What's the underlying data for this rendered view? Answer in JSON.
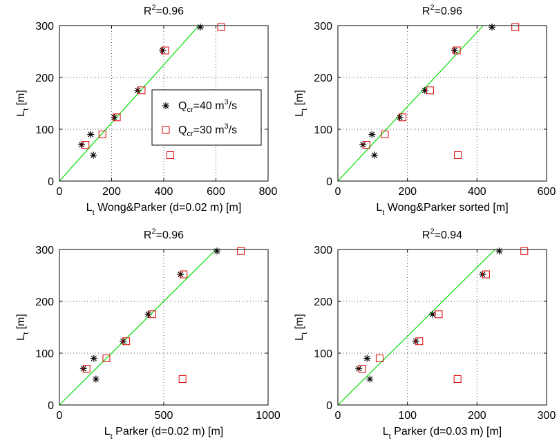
{
  "colors": {
    "series_a": "#000000",
    "series_b": "#dd0000",
    "fit_line": "#00dd00",
    "grid": "#555555"
  },
  "legend": {
    "entries": [
      {
        "marker": "star",
        "color": "#000000",
        "prefix": "Q",
        "sub": "cr",
        "text": "=40 m",
        "sup": "3",
        "suffix": "/s"
      },
      {
        "marker": "square",
        "color": "#dd0000",
        "prefix": "Q",
        "sub": "cr",
        "text": "=30 m",
        "sup": "3",
        "suffix": "/s"
      }
    ]
  },
  "chart_data": [
    {
      "type": "scatter",
      "title": {
        "prefix": "R",
        "sup": "2",
        "rest": "=0.96"
      },
      "xlabel": {
        "prefix": "L",
        "sub": "t",
        "rest": " Wong&Parker (d=0.02 m) [m]"
      },
      "ylabel": {
        "prefix": "L",
        "sub": "t",
        "rest": " [m]"
      },
      "xlim": [
        0,
        800
      ],
      "ylim": [
        0,
        300
      ],
      "xticks": [
        0,
        200,
        400,
        600,
        800
      ],
      "yticks": [
        0,
        100,
        200,
        300
      ],
      "grid": true,
      "legend_position": "center-right",
      "fit_line": {
        "x": [
          0,
          535
        ],
        "y": [
          0,
          300
        ]
      },
      "series": [
        {
          "marker": "star",
          "points": [
            [
              540,
              297
            ],
            [
              395,
              252
            ],
            [
              300,
              175
            ],
            [
              210,
              123
            ],
            [
              120,
              90
            ],
            [
              85,
              70
            ],
            [
              130,
              50
            ]
          ]
        },
        {
          "marker": "square",
          "points": [
            [
              620,
              297
            ],
            [
              405,
              252
            ],
            [
              315,
              175
            ],
            [
              220,
              123
            ],
            [
              165,
              90
            ],
            [
              100,
              70
            ],
            [
              425,
              50
            ]
          ]
        }
      ]
    },
    {
      "type": "scatter",
      "title": {
        "prefix": "R",
        "sup": "2",
        "rest": "=0.96"
      },
      "xlabel": {
        "prefix": "L",
        "sub": "t",
        "rest": " Wong&Parker sorted [m]"
      },
      "ylabel": {
        "prefix": "L",
        "sub": "t",
        "rest": " [m]"
      },
      "xlim": [
        0,
        600
      ],
      "ylim": [
        0,
        300
      ],
      "xticks": [
        0,
        200,
        400,
        600
      ],
      "yticks": [
        0,
        100,
        200,
        300
      ],
      "grid": true,
      "fit_line": {
        "x": [
          0,
          418
        ],
        "y": [
          0,
          300
        ]
      },
      "series": [
        {
          "marker": "star",
          "points": [
            [
              443,
              297
            ],
            [
              335,
              252
            ],
            [
              250,
              175
            ],
            [
              178,
              123
            ],
            [
              98,
              90
            ],
            [
              72,
              70
            ],
            [
              105,
              50
            ]
          ]
        },
        {
          "marker": "square",
          "points": [
            [
              510,
              297
            ],
            [
              342,
              252
            ],
            [
              265,
              175
            ],
            [
              186,
              123
            ],
            [
              135,
              90
            ],
            [
              82,
              70
            ],
            [
              345,
              50
            ]
          ]
        }
      ]
    },
    {
      "type": "scatter",
      "title": {
        "prefix": "R",
        "sup": "2",
        "rest": "=0.96"
      },
      "xlabel": {
        "prefix": "L",
        "sub": "t",
        "rest": " Parker (d=0.02 m) [m]"
      },
      "ylabel": {
        "prefix": "L",
        "sub": "t",
        "rest": " [m]"
      },
      "xlim": [
        0,
        1000
      ],
      "ylim": [
        0,
        300
      ],
      "xticks": [
        0,
        500,
        1000
      ],
      "yticks": [
        0,
        100,
        200,
        300
      ],
      "grid": true,
      "fit_line": {
        "x": [
          0,
          750
        ],
        "y": [
          0,
          300
        ]
      },
      "series": [
        {
          "marker": "star",
          "points": [
            [
              755,
              297
            ],
            [
              580,
              252
            ],
            [
              425,
              175
            ],
            [
              305,
              123
            ],
            [
              165,
              90
            ],
            [
              115,
              70
            ],
            [
              175,
              50
            ]
          ]
        },
        {
          "marker": "square",
          "points": [
            [
              870,
              297
            ],
            [
              595,
              252
            ],
            [
              445,
              175
            ],
            [
              320,
              123
            ],
            [
              225,
              90
            ],
            [
              130,
              70
            ],
            [
              590,
              50
            ]
          ]
        }
      ]
    },
    {
      "type": "scatter",
      "title": {
        "prefix": "R",
        "sup": "2",
        "rest": "=0.94"
      },
      "xlabel": {
        "prefix": "L",
        "sub": "t",
        "rest": " Parker (d=0.03 m) [m]"
      },
      "ylabel": {
        "prefix": "L",
        "sub": "t",
        "rest": " [m]"
      },
      "xlim": [
        0,
        300
      ],
      "ylim": [
        0,
        300
      ],
      "xticks": [
        0,
        100,
        200,
        300
      ],
      "yticks": [
        0,
        100,
        200,
        300
      ],
      "grid": true,
      "fit_line": {
        "x": [
          0,
          226
        ],
        "y": [
          0,
          300
        ]
      },
      "series": [
        {
          "marker": "star",
          "points": [
            [
              232,
              297
            ],
            [
              208,
              252
            ],
            [
              136,
              175
            ],
            [
              112,
              123
            ],
            [
              42,
              90
            ],
            [
              30,
              70
            ],
            [
              46,
              50
            ]
          ]
        },
        {
          "marker": "square",
          "points": [
            [
              268,
              297
            ],
            [
              213,
              252
            ],
            [
              145,
              175
            ],
            [
              117,
              123
            ],
            [
              60,
              90
            ],
            [
              35,
              70
            ],
            [
              172,
              50
            ]
          ]
        }
      ]
    }
  ]
}
